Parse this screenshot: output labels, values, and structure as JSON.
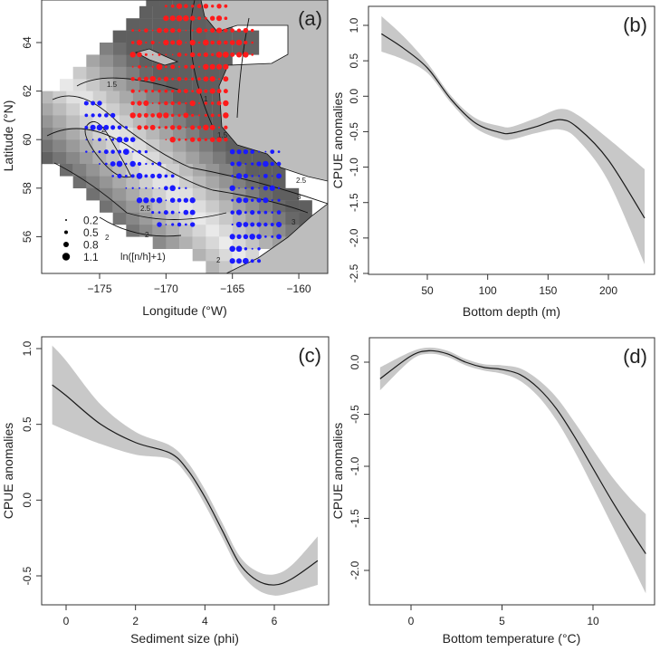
{
  "colors": {
    "band": "#c8c8c8",
    "line": "#1a1a1a",
    "red_points": "#ff1a1a",
    "blue_points": "#1a1aff",
    "land": "#bdbdbd",
    "axis": "#333333"
  },
  "chart_data": [
    {
      "panel": "(a)",
      "type": "map",
      "xlabel": "Longitude (°W)",
      "ylabel": "Latitude (°N)",
      "xticks": [
        -175,
        -170,
        -165,
        -160
      ],
      "yticks": [
        56,
        58,
        60,
        62,
        64
      ],
      "xlim": [
        -179.4,
        -157.8
      ],
      "ylim": [
        54.5,
        65.75
      ],
      "contour_labels": [
        "1.5",
        "1",
        "1.5",
        "2",
        "2.5",
        "3",
        "2.5",
        "2",
        "2",
        "3",
        "2"
      ],
      "legend": {
        "title": "ln([n/h]+1)",
        "sizes": [
          "0.2",
          "0.5",
          "0.8",
          "1.1"
        ],
        "placement": "bottom-left"
      }
    },
    {
      "panel": "(b)",
      "type": "line",
      "xlabel": "Bottom depth (m)",
      "ylabel": "CPUE anomalies",
      "xticks": [
        50,
        100,
        150,
        200
      ],
      "yticks": [
        1.0,
        0.5,
        0.0,
        -0.5,
        -1.0,
        -1.5,
        -2.0,
        -2.5
      ],
      "ytick_labels": [
        "1.0",
        "0.5",
        "0.0",
        "-0.5",
        "-1.0",
        "-1.5",
        "-2.0",
        "-2.5"
      ],
      "x": [
        12,
        30,
        50,
        70,
        90,
        110,
        120,
        140,
        160,
        175,
        200,
        230
      ],
      "y": [
        0.88,
        0.68,
        0.4,
        -0.05,
        -0.38,
        -0.51,
        -0.52,
        -0.43,
        -0.33,
        -0.45,
        -0.9,
        -1.72
      ],
      "lower": [
        0.63,
        0.52,
        0.33,
        -0.1,
        -0.45,
        -0.6,
        -0.61,
        -0.52,
        -0.47,
        -0.62,
        -1.2,
        -2.37
      ],
      "upper": [
        1.13,
        0.85,
        0.47,
        0.0,
        -0.31,
        -0.42,
        -0.43,
        -0.31,
        -0.18,
        -0.27,
        -0.6,
        -1.03
      ]
    },
    {
      "panel": "(c)",
      "type": "line",
      "xlabel": "Sediment size (phi)",
      "ylabel": "CPUE anomalies",
      "xticks": [
        0,
        2,
        4,
        6
      ],
      "yticks": [
        1.0,
        0.5,
        0.0,
        -0.5
      ],
      "ytick_labels": [
        "1.0",
        "0.5",
        "0.0",
        "-0.5"
      ],
      "x": [
        -0.4,
        0,
        1,
        2,
        3,
        3.5,
        4,
        4.5,
        5,
        5.5,
        6,
        6.5,
        7.25
      ],
      "y": [
        0.76,
        0.69,
        0.5,
        0.38,
        0.31,
        0.2,
        0.02,
        -0.2,
        -0.42,
        -0.53,
        -0.56,
        -0.52,
        -0.4
      ],
      "lower": [
        0.5,
        0.46,
        0.37,
        0.3,
        0.27,
        0.16,
        -0.03,
        -0.25,
        -0.47,
        -0.59,
        -0.63,
        -0.61,
        -0.56
      ],
      "upper": [
        1.02,
        0.92,
        0.63,
        0.45,
        0.36,
        0.25,
        0.07,
        -0.15,
        -0.37,
        -0.47,
        -0.49,
        -0.43,
        -0.24
      ]
    },
    {
      "panel": "(d)",
      "type": "line",
      "xlabel": "Bottom temperature (°C)",
      "ylabel": "CPUE anomalies",
      "xticks": [
        0,
        5,
        10
      ],
      "yticks": [
        0.0,
        -0.5,
        -1.0,
        -1.5,
        -2.0
      ],
      "ytick_labels": [
        "0.0",
        "-0.5",
        "-1.0",
        "-1.5",
        "-2.0"
      ],
      "x": [
        -1.7,
        0,
        1,
        2,
        3,
        4,
        5,
        6,
        7,
        8,
        9,
        10,
        11,
        12,
        12.9
      ],
      "y": [
        -0.16,
        0.06,
        0.11,
        0.08,
        0.0,
        -0.05,
        -0.07,
        -0.12,
        -0.25,
        -0.45,
        -0.72,
        -1.02,
        -1.32,
        -1.6,
        -1.84
      ],
      "lower": [
        -0.27,
        0.02,
        0.08,
        0.05,
        -0.03,
        -0.08,
        -0.11,
        -0.18,
        -0.33,
        -0.56,
        -0.86,
        -1.2,
        -1.55,
        -1.9,
        -2.22
      ],
      "upper": [
        -0.05,
        0.1,
        0.14,
        0.11,
        0.03,
        -0.02,
        -0.03,
        -0.06,
        -0.17,
        -0.34,
        -0.58,
        -0.84,
        -1.09,
        -1.3,
        -1.46
      ]
    }
  ]
}
